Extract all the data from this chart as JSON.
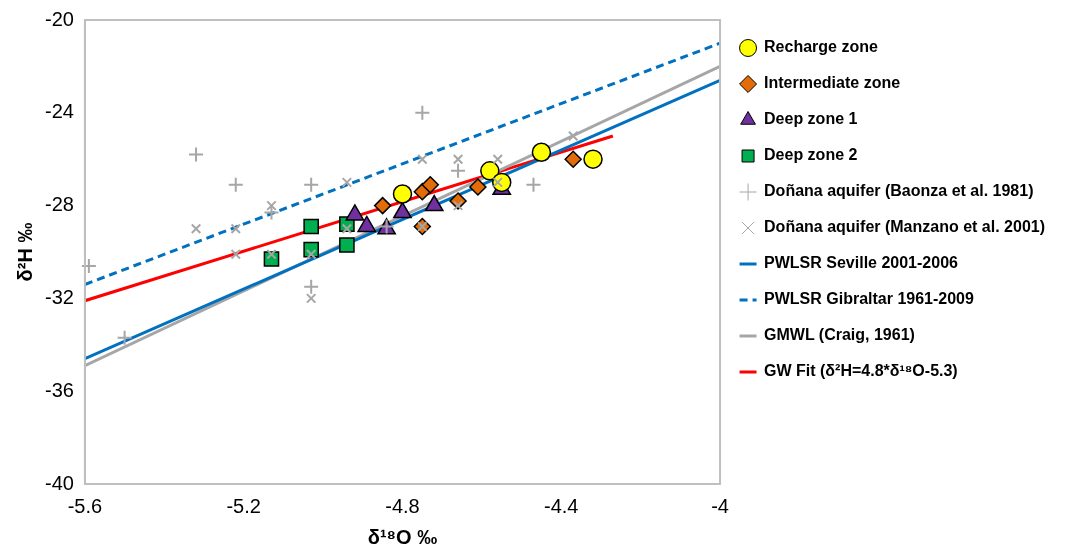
{
  "chart_data": {
    "type": "scatter",
    "xlabel": "δ¹⁸O ‰",
    "ylabel": "δ²H ‰",
    "xlim": [
      -5.6,
      -4
    ],
    "xticks": [
      -5.6,
      -5.2,
      -4.8,
      -4.4,
      -4
    ],
    "ylim": [
      -40,
      -20
    ],
    "yticks": [
      -40,
      -36,
      -32,
      -28,
      -24,
      -20
    ],
    "grid": false,
    "legend": "right",
    "series": [
      {
        "name": "Recharge zone",
        "type": "scatter",
        "marker": "circle",
        "color": "#ffff00",
        "x": [
          -4.8,
          -4.58,
          -4.55,
          -4.45,
          -4.32
        ],
        "values": [
          -27.5,
          -26.5,
          -27.0,
          -25.7,
          -26.0
        ]
      },
      {
        "name": "Intermediate zone",
        "type": "scatter",
        "marker": "diamond",
        "color": "#e36c09",
        "x": [
          -4.85,
          -4.75,
          -4.73,
          -4.66,
          -4.61,
          -4.75,
          -4.37
        ],
        "values": [
          -28.0,
          -27.4,
          -27.1,
          -27.8,
          -27.2,
          -28.9,
          -26.0
        ]
      },
      {
        "name": "Deep zone 1",
        "type": "scatter",
        "marker": "triangle",
        "color": "#7030a0",
        "x": [
          -4.92,
          -4.89,
          -4.84,
          -4.8,
          -4.72,
          -4.55
        ],
        "values": [
          -28.4,
          -28.9,
          -29.0,
          -28.3,
          -28.0,
          -27.3
        ]
      },
      {
        "name": "Deep zone 2",
        "type": "scatter",
        "marker": "square",
        "color": "#00b050",
        "x": [
          -5.13,
          -5.03,
          -5.03,
          -4.94,
          -4.94
        ],
        "values": [
          -30.3,
          -28.9,
          -29.9,
          -28.8,
          -29.7
        ]
      },
      {
        "name": "Doñana aquifer (Baonza et al. 1981)",
        "type": "scatter",
        "marker": "cross",
        "color": "#a6a6a6",
        "x": [
          -5.32,
          -5.22,
          -5.03,
          -5.13,
          -5.59,
          -5.5,
          -5.03,
          -4.84,
          -4.75,
          -4.66,
          -4.47
        ],
        "values": [
          -25.8,
          -27.1,
          -27.1,
          -28.3,
          -30.6,
          -33.7,
          -31.5,
          -28.9,
          -24.0,
          -26.5,
          -27.1
        ]
      },
      {
        "name": "Doñana aquifer (Manzano et al. 2001)",
        "type": "scatter",
        "marker": "x",
        "color": "#a6a6a6",
        "x": [
          -5.32,
          -5.22,
          -5.22,
          -5.13,
          -5.13,
          -5.03,
          -5.03,
          -4.94,
          -4.94,
          -4.75,
          -4.66,
          -4.56,
          -4.66,
          -4.75,
          -4.37,
          -4.56
        ],
        "values": [
          -29.0,
          -29.0,
          -30.1,
          -28.0,
          -30.1,
          -30.1,
          -32.0,
          -27.0,
          -29.0,
          -26.0,
          -26.0,
          -26.0,
          -28.0,
          -28.9,
          -25.0,
          -27.0
        ]
      },
      {
        "name": "PWLSR Seville 2001-2006",
        "type": "line",
        "line_style": "solid",
        "color": "#0070c0",
        "x": [
          -5.6,
          -4
        ],
        "values": [
          -34.6,
          -22.6
        ]
      },
      {
        "name": "PWLSR Gibraltar 1961-2009",
        "type": "line",
        "line_style": "dashed",
        "color": "#0070c0",
        "x": [
          -5.6,
          -4
        ],
        "values": [
          -31.4,
          -21.0
        ]
      },
      {
        "name": "GMWL (Craig, 1961)",
        "type": "line",
        "line_style": "solid",
        "color": "#a6a6a6",
        "x": [
          -5.6,
          -4
        ],
        "values": [
          -34.9,
          -22.0
        ]
      },
      {
        "name": "GW Fit (δ²H=4.8*δ¹⁸O-5.3)",
        "type": "line",
        "line_style": "solid",
        "color": "#ff0000",
        "x": [
          -5.6,
          -4.27
        ],
        "values": [
          -32.1,
          -25.0
        ]
      }
    ]
  }
}
